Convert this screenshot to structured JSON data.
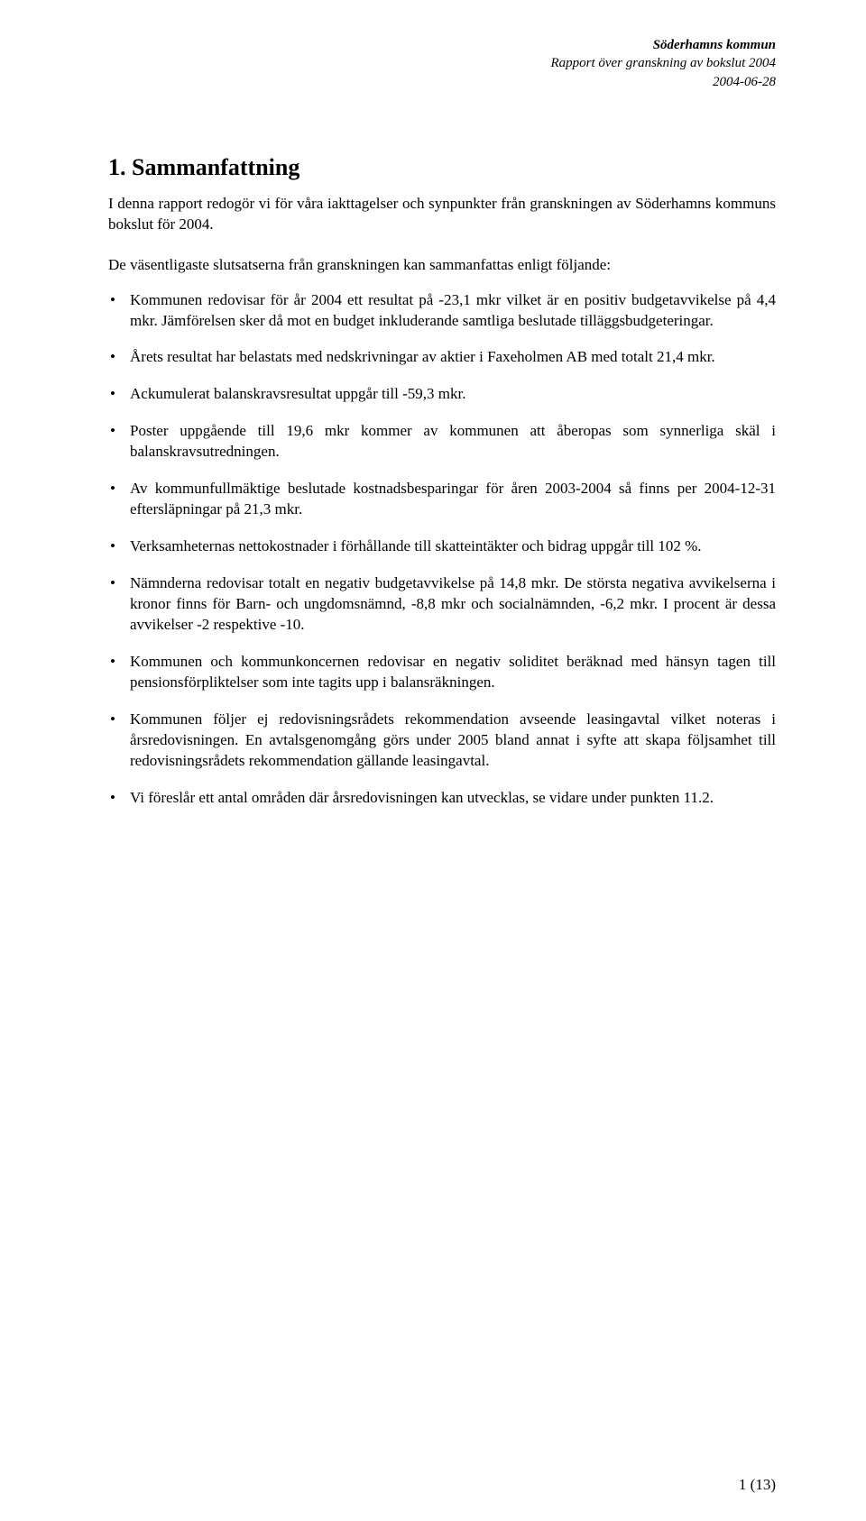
{
  "header": {
    "org": "Söderhamns kommun",
    "subtitle": "Rapport över granskning av bokslut 2004",
    "date": "2004-06-28"
  },
  "section": {
    "title": "1.  Sammanfattning",
    "intro": "I denna rapport redogör vi för våra iakttagelser och synpunkter från granskningen av Söderhamns kommuns bokslut för 2004.",
    "lead": "De väsentligaste slutsatserna från granskningen kan sammanfattas enligt följande:",
    "bullets": [
      "Kommunen redovisar för år 2004 ett resultat på -23,1 mkr vilket är en positiv budgetavvikelse på 4,4 mkr. Jämförelsen sker då mot en budget inkluderande samtliga beslutade tilläggsbudgeteringar.",
      "Årets resultat har belastats med nedskrivningar av aktier i Faxeholmen AB med totalt 21,4 mkr.",
      "Ackumulerat balanskravsresultat uppgår till -59,3 mkr.",
      "Poster uppgående till 19,6 mkr kommer av kommunen att åberopas som synnerliga skäl i balanskravsutredningen.",
      "Av kommunfullmäktige beslutade kostnadsbesparingar för åren 2003-2004 så finns per 2004-12-31 eftersläpningar på 21,3 mkr.",
      "Verksamheternas nettokostnader i förhållande till skatteintäkter och bidrag uppgår till 102 %.",
      "Nämnderna redovisar totalt en negativ budgetavvikelse på 14,8 mkr. De största negativa avvikelserna i kronor finns för Barn- och ungdomsnämnd, -8,8 mkr och socialnämnden, -6,2 mkr. I procent är dessa avvikelser -2 respektive -10.",
      "Kommunen och kommunkoncernen redovisar en negativ soliditet beräknad med hänsyn tagen till pensionsförpliktelser som inte tagits upp i balansräkningen.",
      "Kommunen följer ej redovisningsrådets rekommendation avseende leasingavtal vilket noteras i årsredovisningen. En avtalsgenomgång görs under 2005 bland annat i syfte att skapa följsamhet till redovisningsrådets rekommendation gällande leasingavtal.",
      "Vi föreslår ett antal områden där årsredovisningen kan utvecklas, se vidare under punkten 11.2."
    ]
  },
  "footer": {
    "page_number": "1 (13)"
  }
}
